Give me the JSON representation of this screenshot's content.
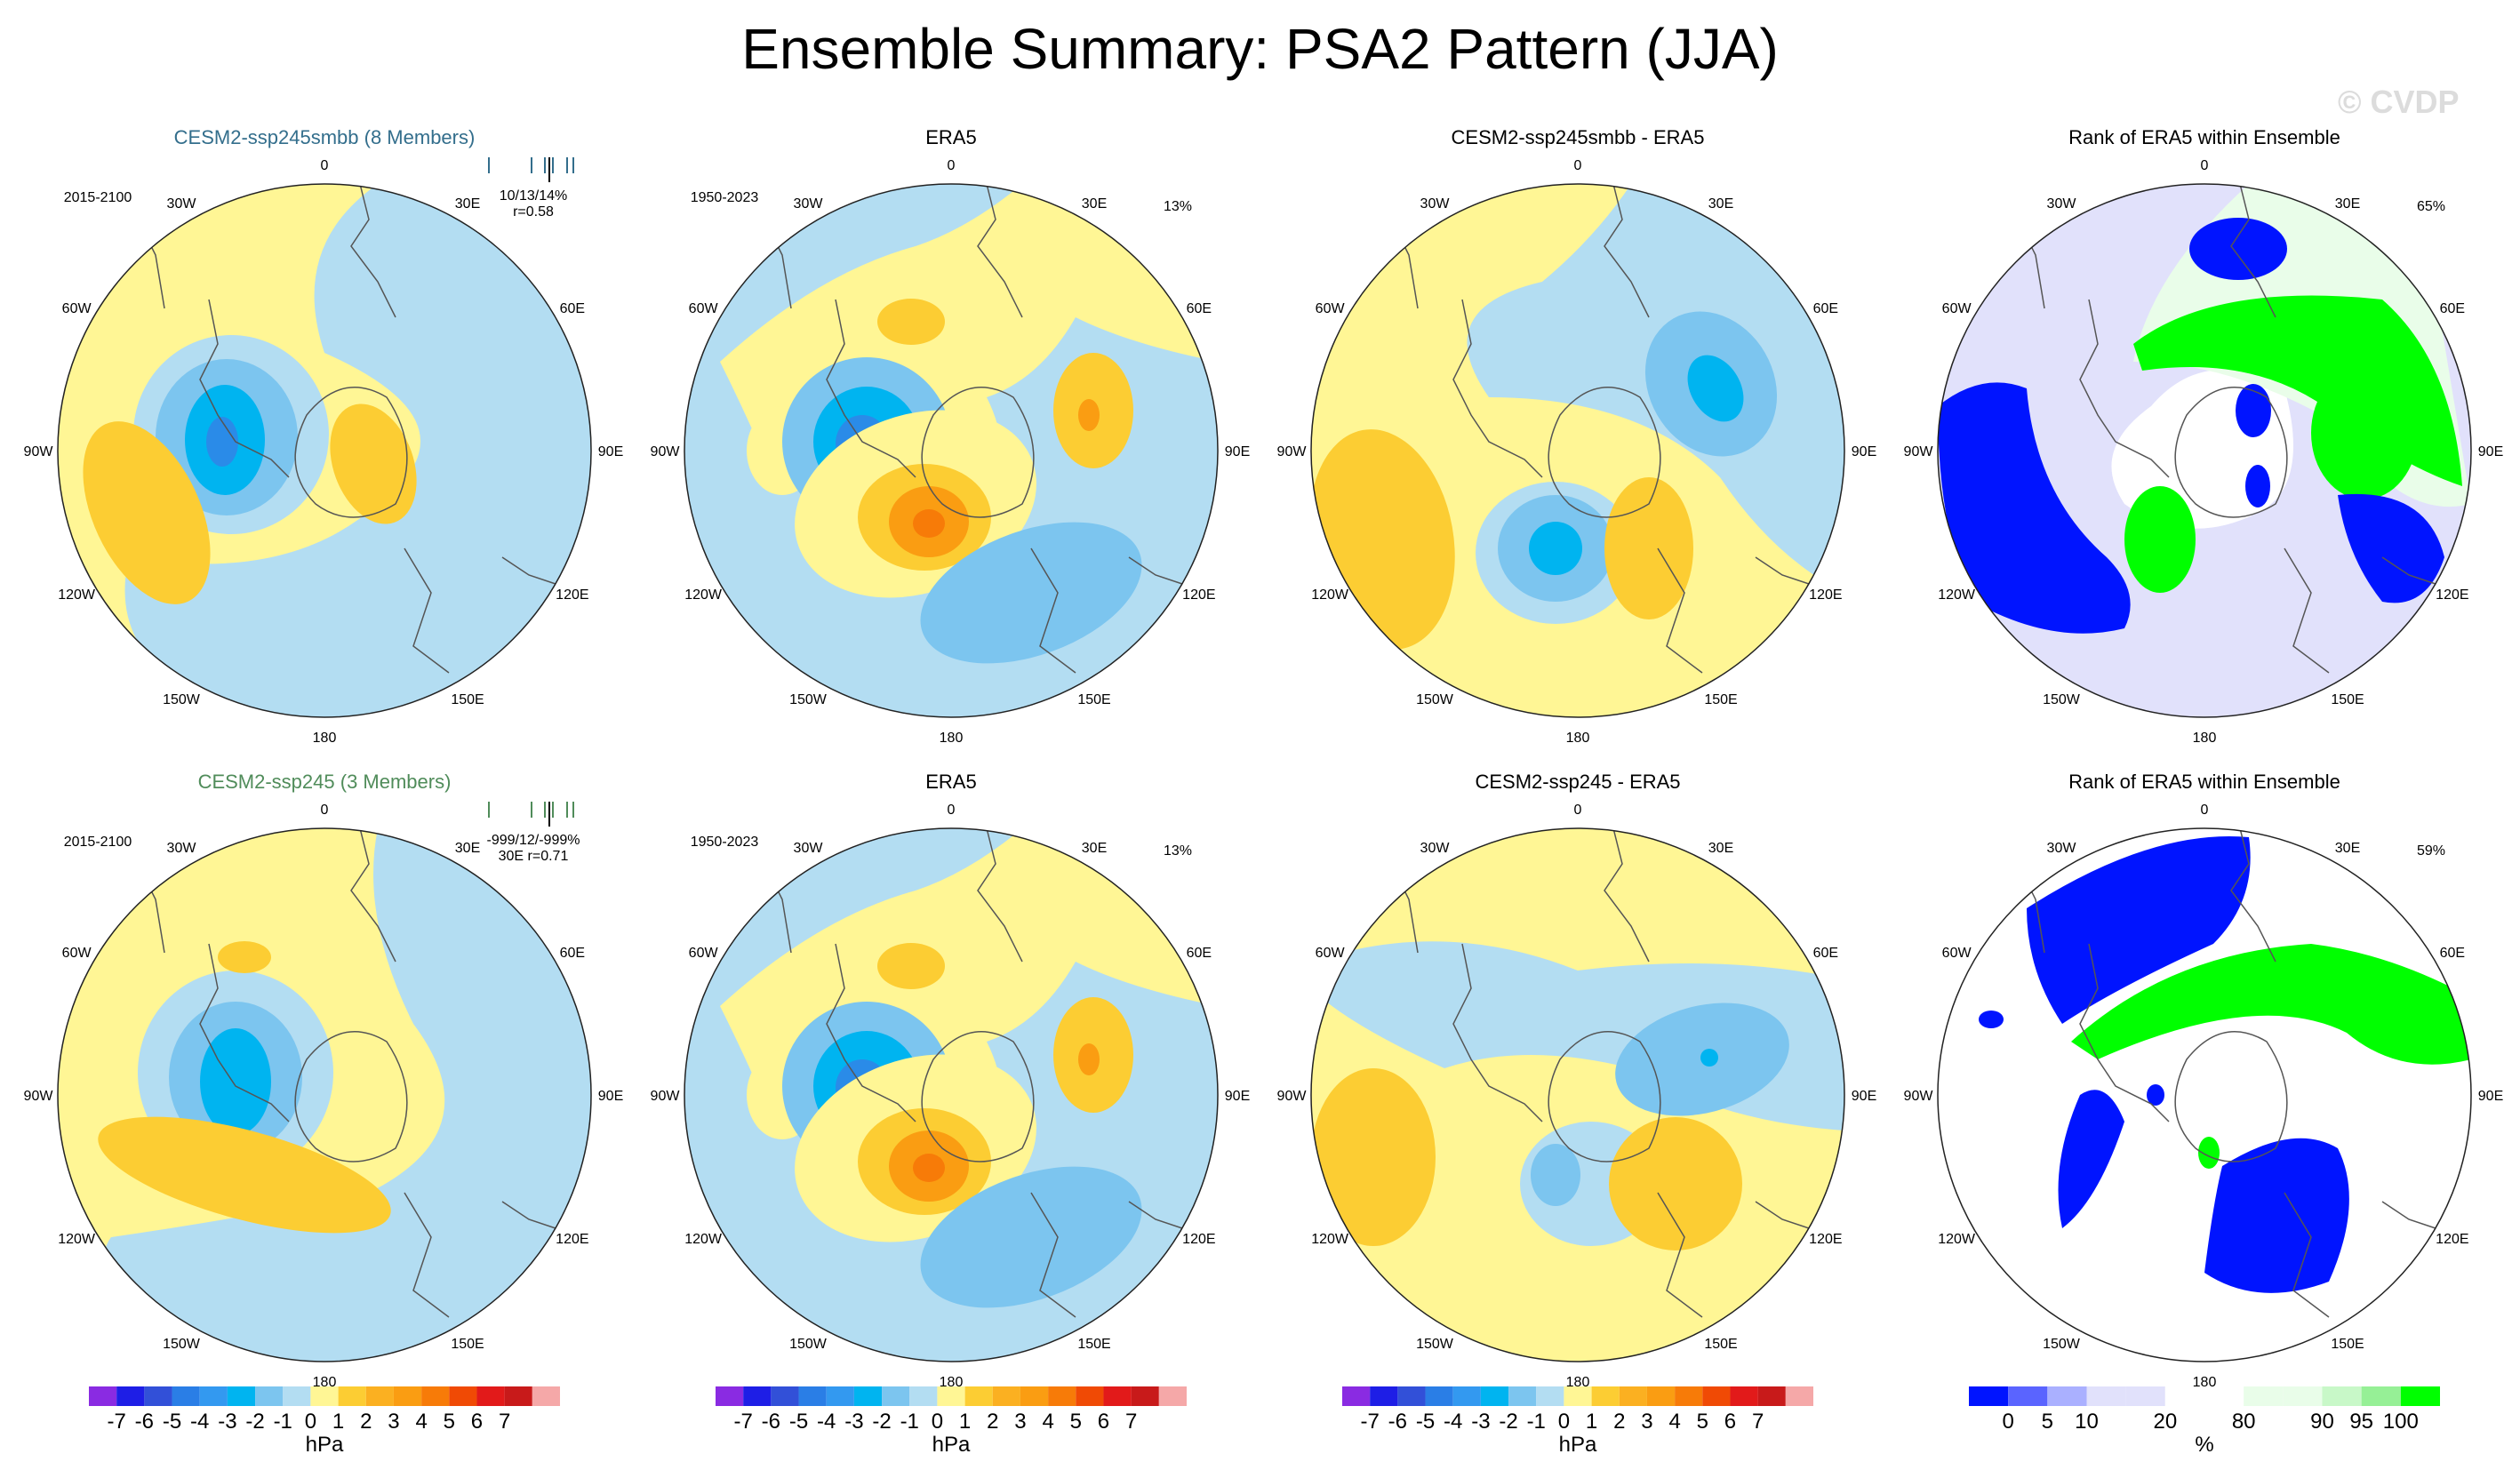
{
  "page": {
    "title": "Ensemble Summary: PSA2 Pattern (JJA)",
    "watermark": "© CVDP"
  },
  "colors": {
    "yellow": "#fff695",
    "neg1": "#b3ddf2",
    "neg2": "#7cc5ef",
    "neg3": "#00b4f0",
    "neg4": "#2a8be8",
    "pos2": "#fccd33",
    "pos3": "#fa9d12",
    "pos4": "#f77b08",
    "rank_dark": "#0014ff",
    "rank_light": "#e1e1fb",
    "rank_green": "#00ff00",
    "rank_lightgreen": "#e9fde9",
    "member_blue": "#336e8c",
    "member_green": "#508c5a"
  },
  "chart_data": [
    {
      "type": "polar-map",
      "title": "CESM2-ssp245smbb (8 Members)",
      "title_color": "member_blue",
      "period": "2015-2100",
      "stats_line1": "10/13/14%",
      "stats_line2": "r=0.58",
      "field": "ssp245smbb_mean",
      "lon_labels": [
        "0",
        "30E",
        "60E",
        "90E",
        "120E",
        "150E",
        "180",
        "150W",
        "120W",
        "90W",
        "60W",
        "30W"
      ]
    },
    {
      "type": "polar-map",
      "title": "ERA5",
      "period": "1950-2023",
      "pct": "13%",
      "field": "era5",
      "lon_labels": [
        "0",
        "30E",
        "60E",
        "90E",
        "120E",
        "150E",
        "180",
        "150W",
        "120W",
        "90W",
        "60W",
        "30W"
      ]
    },
    {
      "type": "polar-map",
      "title": "CESM2-ssp245smbb - ERA5",
      "field": "diff_smbb",
      "lon_labels": [
        "0",
        "30E",
        "60E",
        "90E",
        "120E",
        "150E",
        "180",
        "150W",
        "120W",
        "90W",
        "60W",
        "30W"
      ]
    },
    {
      "type": "polar-map",
      "title": "Rank of ERA5 within Ensemble",
      "pct": "65%",
      "field": "rank_smbb",
      "lon_labels": [
        "0",
        "30E",
        "60E",
        "90E",
        "120E",
        "150E",
        "180",
        "150W",
        "120W",
        "90W",
        "60W",
        "30W"
      ]
    },
    {
      "type": "polar-map",
      "title": "CESM2-ssp245 (3 Members)",
      "title_color": "member_green",
      "period": "2015-2100",
      "stats_line1": "-999/12/-999%",
      "stats_line2": "30E r=0.71",
      "field": "ssp245_mean",
      "lon_labels": [
        "0",
        "30E",
        "60E",
        "90E",
        "120E",
        "150E",
        "180",
        "150W",
        "120W",
        "90W",
        "60W",
        "30W"
      ]
    },
    {
      "type": "polar-map",
      "title": "ERA5",
      "period": "1950-2023",
      "pct": "13%",
      "field": "era5",
      "lon_labels": [
        "0",
        "30E",
        "60E",
        "90E",
        "120E",
        "150E",
        "180",
        "150W",
        "120W",
        "90W",
        "60W",
        "30W"
      ]
    },
    {
      "type": "polar-map",
      "title": "CESM2-ssp245 - ERA5",
      "field": "diff_245",
      "lon_labels": [
        "0",
        "30E",
        "60E",
        "90E",
        "120E",
        "150E",
        "180",
        "150W",
        "120W",
        "90W",
        "60W",
        "30W"
      ]
    },
    {
      "type": "polar-map",
      "title": "Rank of ERA5 within Ensemble",
      "pct": "59%",
      "field": "rank_245",
      "lon_labels": [
        "0",
        "30E",
        "60E",
        "90E",
        "120E",
        "150E",
        "180",
        "150W",
        "120W",
        "90W",
        "60W",
        "30W"
      ]
    }
  ],
  "colorbars": {
    "hpa": {
      "unit": "hPa",
      "colors": [
        "#8a2be2",
        "#1e1ee6",
        "#3250d8",
        "#2a7ee6",
        "#3399f0",
        "#00b4f0",
        "#7cc5ef",
        "#b3ddf2",
        "#fff695",
        "#fccd33",
        "#fbb021",
        "#fa9d12",
        "#f77b08",
        "#f04a05",
        "#e21a1a",
        "#c81a1a",
        "#f5a8a8"
      ],
      "labels": [
        "-7",
        "-6",
        "-5",
        "-4",
        "-3",
        "-2",
        "-1",
        "0",
        "1",
        "2",
        "3",
        "4",
        "5",
        "6",
        "7"
      ]
    },
    "rank": {
      "unit": "%",
      "colors": [
        "#0014ff",
        "#5a64ff",
        "#aab0ff",
        "#e1e1fb",
        "#e1e1fb",
        "#ffffff",
        "#ffffff",
        "#e9fde9",
        "#e9fde9",
        "#c8f8c8",
        "#96f096",
        "#00ff00"
      ],
      "labels": [
        "0",
        "5",
        "10",
        "20",
        "80",
        "90",
        "95",
        "100"
      ]
    }
  }
}
